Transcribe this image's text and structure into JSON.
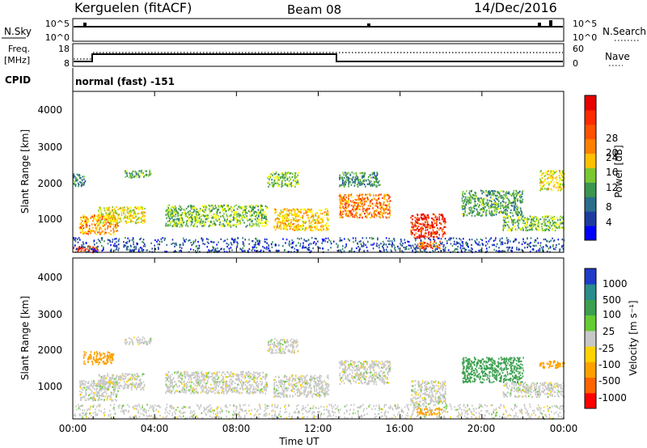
{
  "header": {
    "station": "Kerguelen (fitACF)",
    "beam": "Beam 08",
    "date": "14/Dec/2016"
  },
  "top_panel": {
    "left_label": "N.Sky",
    "left_ticks": [
      "10^5",
      "10^0"
    ],
    "right_ticks": [
      "10^5",
      "10^0"
    ],
    "right_label": "N.Search",
    "right_label_style": "dotted"
  },
  "freq_panel": {
    "left_label_1": "Freq.",
    "left_label_2": "[MHz]",
    "left_ticks": [
      "18",
      "8"
    ],
    "right_ticks": [
      "60",
      "0"
    ],
    "right_label": "Nave",
    "right_label_style": "dotted"
  },
  "cpid": {
    "label": "CPID",
    "value": "normal (fast) -151"
  },
  "power_panel": {
    "ylabel": "Slant Range [km]",
    "yticks": [
      "4000",
      "3000",
      "2000",
      "1000"
    ],
    "colorbar_label": "Power [dB]",
    "colorbar_ticks": [
      "28",
      "24",
      "20",
      "16",
      "12",
      "8",
      "4"
    ],
    "colors": [
      "#0000ff",
      "#1e3ca0",
      "#2a6e8c",
      "#3c9650",
      "#7ac832",
      "#ffff00",
      "#ffc000",
      "#ff8000",
      "#ff3200",
      "#e60000"
    ]
  },
  "velocity_panel": {
    "ylabel": "Slant Range [km]",
    "yticks": [
      "4000",
      "3000",
      "2000",
      "1000"
    ],
    "colorbar_label": "Velocity [m s⁻¹]",
    "colorbar_ticks": [
      "1000",
      "500",
      "100",
      "25",
      "-25",
      "-100",
      "-500",
      "-1000"
    ],
    "colors": [
      "#1e3cc8",
      "#2a8c8c",
      "#3ca050",
      "#66cc33",
      "#c8c8c8",
      "#ffd200",
      "#ffa000",
      "#ff6400",
      "#ff0000"
    ]
  },
  "x_axis": {
    "label": "Time UT",
    "ticks": [
      "00:00",
      "04:00",
      "08:00",
      "12:00",
      "16:00",
      "20:00",
      "00:00"
    ]
  },
  "chart_data": [
    {
      "type": "heatmap",
      "title": "Power [dB]",
      "xlabel": "Time UT",
      "ylabel": "Slant Range [km]",
      "x_range_hours": [
        0,
        24
      ],
      "ylim": [
        180,
        4600
      ],
      "zlim": [
        0,
        32
      ],
      "scatter_regions": [
        {
          "t0": 0.0,
          "t1": 1.2,
          "r0": 200,
          "r1": 380,
          "level": 28
        },
        {
          "t0": 0.0,
          "t1": 24.0,
          "r0": 200,
          "r1": 600,
          "level": 6
        },
        {
          "t0": 0.3,
          "t1": 2.2,
          "r0": 700,
          "r1": 1250,
          "level": 22
        },
        {
          "t0": 1.2,
          "t1": 3.5,
          "r0": 1000,
          "r1": 1450,
          "level": 18
        },
        {
          "t0": 0.0,
          "t1": 0.6,
          "r0": 2000,
          "r1": 2350,
          "level": 10
        },
        {
          "t0": 2.5,
          "t1": 3.8,
          "r0": 2250,
          "r1": 2450,
          "level": 12
        },
        {
          "t0": 4.5,
          "t1": 9.5,
          "r0": 900,
          "r1": 1500,
          "level": 14
        },
        {
          "t0": 9.8,
          "t1": 12.5,
          "r0": 800,
          "r1": 1400,
          "level": 20
        },
        {
          "t0": 9.5,
          "t1": 11.0,
          "r0": 2000,
          "r1": 2400,
          "level": 14
        },
        {
          "t0": 13.0,
          "t1": 15.5,
          "r0": 1150,
          "r1": 1800,
          "level": 24
        },
        {
          "t0": 13.0,
          "t1": 15.0,
          "r0": 2000,
          "r1": 2400,
          "level": 10
        },
        {
          "t0": 16.5,
          "t1": 18.2,
          "r0": 600,
          "r1": 1250,
          "level": 28
        },
        {
          "t0": 16.8,
          "t1": 18.0,
          "r0": 300,
          "r1": 500,
          "level": 26
        },
        {
          "t0": 19.0,
          "t1": 22.0,
          "r0": 1200,
          "r1": 1900,
          "level": 12
        },
        {
          "t0": 21.0,
          "t1": 24.0,
          "r0": 800,
          "r1": 1200,
          "level": 14
        },
        {
          "t0": 22.8,
          "t1": 24.0,
          "r0": 1900,
          "r1": 2450,
          "level": 18
        }
      ]
    },
    {
      "type": "heatmap",
      "title": "Velocity [m s⁻¹]",
      "xlabel": "Time UT",
      "ylabel": "Slant Range [km]",
      "x_range_hours": [
        0,
        24
      ],
      "ylim": [
        180,
        4600
      ],
      "zlim": [
        -1000,
        1000
      ],
      "scatter_regions": [
        {
          "t0": 0.0,
          "t1": 24.0,
          "r0": 200,
          "r1": 600,
          "level": 0
        },
        {
          "t0": 0.3,
          "t1": 2.2,
          "r0": 700,
          "r1": 1250,
          "level": 0
        },
        {
          "t0": 1.2,
          "t1": 3.5,
          "r0": 1000,
          "r1": 1450,
          "level": 0
        },
        {
          "t0": 0.5,
          "t1": 2.0,
          "r0": 1700,
          "r1": 2050,
          "level": -150
        },
        {
          "t0": 2.5,
          "t1": 3.8,
          "r0": 2250,
          "r1": 2450,
          "level": 0
        },
        {
          "t0": 4.5,
          "t1": 9.5,
          "r0": 900,
          "r1": 1500,
          "level": 0
        },
        {
          "t0": 9.8,
          "t1": 12.5,
          "r0": 800,
          "r1": 1400,
          "level": 0
        },
        {
          "t0": 9.5,
          "t1": 11.0,
          "r0": 2000,
          "r1": 2400,
          "level": 0
        },
        {
          "t0": 13.0,
          "t1": 15.5,
          "r0": 1150,
          "r1": 1800,
          "level": 0
        },
        {
          "t0": 16.5,
          "t1": 18.2,
          "r0": 600,
          "r1": 1250,
          "level": 0
        },
        {
          "t0": 16.8,
          "t1": 18.0,
          "r0": 300,
          "r1": 500,
          "level": -300
        },
        {
          "t0": 19.0,
          "t1": 22.0,
          "r0": 1200,
          "r1": 1900,
          "level": 150
        },
        {
          "t0": 21.0,
          "t1": 24.0,
          "r0": 800,
          "r1": 1200,
          "level": 0
        },
        {
          "t0": 22.8,
          "t1": 24.0,
          "r0": 1600,
          "r1": 1800,
          "level": -200
        }
      ]
    }
  ]
}
